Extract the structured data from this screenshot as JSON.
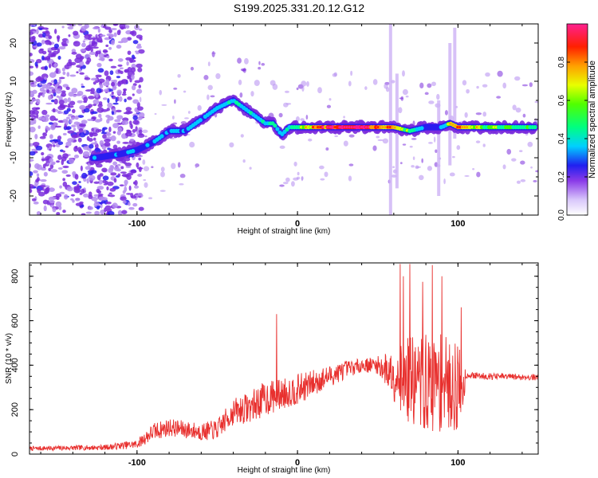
{
  "title": "S199.2025.331.20.12.G12",
  "colorbar": {
    "label": "Normalized spectral amplitude",
    "ticks": [
      "0.0",
      "0.2",
      "0.4",
      "0.6",
      "0.8"
    ],
    "tick_values": [
      0.0,
      0.2,
      0.4,
      0.6,
      0.8
    ]
  },
  "chart_data": [
    {
      "type": "heatmap",
      "title": "S199.2025.331.20.12.G12",
      "xlabel": "Height of straight line (km)",
      "ylabel": "Frequency (Hz)",
      "xlim": [
        -167,
        150
      ],
      "ylim": [
        -25,
        25
      ],
      "xticks": [
        -100,
        0,
        100
      ],
      "xtick_labels": [
        "-100",
        "0",
        "100"
      ],
      "yticks": [
        -20,
        -10,
        0,
        10,
        20
      ],
      "ytick_labels": [
        "-20",
        "-10",
        "0",
        "10",
        "20"
      ],
      "zlim": [
        0,
        1
      ],
      "colorscale": "rainbow (purple-blue-cyan-green-yellow-red-magenta)",
      "ridge": {
        "x": [
          -125,
          -110,
          -100,
          -90,
          -80,
          -70,
          -60,
          -50,
          -40,
          -30,
          -20,
          -15,
          -10,
          -5,
          0,
          20,
          40,
          60,
          70,
          80,
          90,
          95,
          100,
          120,
          148
        ],
        "y": [
          -10,
          -9,
          -8,
          -6,
          -3,
          -3,
          0,
          3,
          5,
          2,
          -1,
          -1,
          -4,
          -2,
          -2,
          -2,
          -2,
          -2,
          -3,
          -2,
          -2,
          -1,
          -2,
          -2,
          -2
        ],
        "amplitude": [
          0.3,
          0.3,
          0.3,
          0.3,
          0.35,
          0.35,
          0.35,
          0.35,
          0.45,
          0.4,
          0.4,
          0.5,
          0.35,
          0.45,
          0.55,
          0.95,
          0.9,
          0.7,
          0.55,
          0.3,
          0.3,
          0.7,
          0.75,
          0.6,
          0.5
        ]
      }
    },
    {
      "type": "line",
      "xlabel": "Height of straight line (km)",
      "ylabel": "SNR (10 * v/v)",
      "xlim": [
        -167,
        150
      ],
      "ylim": [
        0,
        860
      ],
      "xticks": [
        -100,
        0,
        100
      ],
      "xtick_labels": [
        "-100",
        "0",
        "100"
      ],
      "yticks": [
        0,
        200,
        400,
        600,
        800
      ],
      "ytick_labels": [
        "0",
        "200",
        "400",
        "600",
        "800"
      ],
      "series": [
        {
          "name": "SNR",
          "color": "#e8302e",
          "envelope_x": [
            -167,
            -120,
            -100,
            -90,
            -80,
            -70,
            -60,
            -50,
            -40,
            -30,
            -20,
            -10,
            0,
            10,
            20,
            30,
            40,
            50,
            60,
            70,
            80,
            90,
            100,
            103,
            105,
            120,
            150
          ],
          "envelope_y": [
            25,
            30,
            45,
            100,
            120,
            110,
            100,
            110,
            190,
            210,
            250,
            270,
            290,
            320,
            350,
            380,
            400,
            400,
            360,
            330,
            310,
            320,
            300,
            300,
            355,
            350,
            345
          ],
          "envelope_amp": [
            10,
            12,
            20,
            40,
            40,
            40,
            40,
            45,
            60,
            70,
            80,
            70,
            70,
            60,
            50,
            40,
            30,
            40,
            120,
            200,
            230,
            220,
            200,
            150,
            15,
            15,
            15
          ],
          "spikes": [
            {
              "x": -13,
              "y": 630
            },
            {
              "x": 64,
              "y": 855
            },
            {
              "x": 66,
              "y": 800
            },
            {
              "x": 70,
              "y": 855
            },
            {
              "x": 78,
              "y": 775
            },
            {
              "x": 84,
              "y": 850
            },
            {
              "x": 90,
              "y": 800
            },
            {
              "x": 102,
              "y": 660
            }
          ]
        }
      ]
    }
  ]
}
